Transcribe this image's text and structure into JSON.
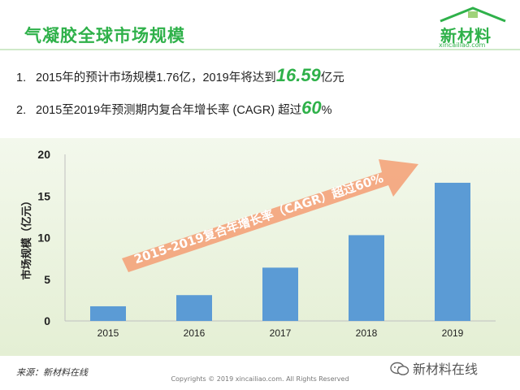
{
  "title": "气凝胶全球市场规模",
  "logo": {
    "main": "新材料",
    "sub": "xincailiao.com"
  },
  "bullets": [
    {
      "num": "1.",
      "pre": "2015年的预计市场规模1.76亿，2019年将达到",
      "highlight": "16.59",
      "post": "亿元"
    },
    {
      "num": "2.",
      "pre": "2015至2019年预测期内复合年增长率 (CAGR) 超过",
      "highlight": "60",
      "post": "%"
    }
  ],
  "colors": {
    "accent": "#2fb14a",
    "bar": "#5b9bd5",
    "arrow": "#f4a37a"
  },
  "chart_data": {
    "type": "bar",
    "categories": [
      "2015",
      "2016",
      "2017",
      "2018",
      "2019"
    ],
    "values": [
      1.76,
      3.1,
      6.4,
      10.3,
      16.59
    ],
    "ylabel": "市场规模（亿元）",
    "ylim": [
      0,
      20
    ],
    "yticks": [
      "0",
      "5",
      "10",
      "15",
      "20"
    ],
    "grid": false,
    "annotation": "2015-2019复合年增长率（CAGR）超过60%"
  },
  "footer": {
    "source": "来源：新材料在线",
    "copyright": "Copyrights © 2019 xincailiao.com. All Rights Reserved",
    "wechat": "新材料在线"
  }
}
